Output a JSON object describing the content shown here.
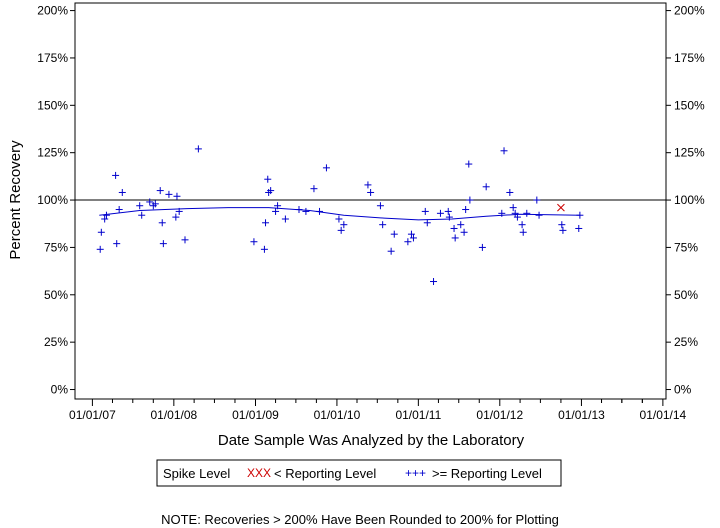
{
  "chart_data": {
    "type": "scatter",
    "xlabel": "Date Sample Was Analyzed by the Laboratory",
    "ylabel": "Percent Recovery",
    "x_tick_labels": [
      "01/01/07",
      "01/01/08",
      "01/01/09",
      "01/01/10",
      "01/01/11",
      "01/01/12",
      "01/01/13",
      "01/01/14"
    ],
    "y_tick_labels": [
      "0%",
      "25%",
      "50%",
      "75%",
      "100%",
      "125%",
      "150%",
      "175%",
      "200%"
    ],
    "y_ticks": [
      0,
      25,
      50,
      75,
      100,
      125,
      150,
      175,
      200
    ],
    "xlim": [
      "2006-10-15",
      "2014-01-15"
    ],
    "ylim": [
      -5,
      204
    ],
    "reference_line": 100,
    "legend": {
      "title": "Spike Level",
      "below_symbol": "XXX",
      "below_label": "< Reporting Level",
      "above_symbol": "+++",
      "above_label": ">= Reporting Level"
    },
    "note": "NOTE: Recoveries > 200% Have Been Rounded to 200% for Plotting",
    "colors": {
      "points": "#0000cc",
      "below_marker": "#cc0000",
      "axis": "#000000"
    },
    "series": [
      {
        "name": ">= Reporting Level",
        "marker": "+",
        "points": [
          [
            "2007-02-05",
            74
          ],
          [
            "2007-02-10",
            83
          ],
          [
            "2007-02-25",
            90
          ],
          [
            "2007-03-05",
            92
          ],
          [
            "2007-04-15",
            113
          ],
          [
            "2007-04-20",
            77
          ],
          [
            "2007-05-01",
            95
          ],
          [
            "2007-05-15",
            104
          ],
          [
            "2007-08-01",
            97
          ],
          [
            "2007-08-10",
            92
          ],
          [
            "2007-09-15",
            99
          ],
          [
            "2007-10-01",
            97
          ],
          [
            "2007-10-10",
            98
          ],
          [
            "2007-11-01",
            105
          ],
          [
            "2007-11-10",
            88
          ],
          [
            "2007-11-15",
            77
          ],
          [
            "2007-12-10",
            103
          ],
          [
            "2008-01-10",
            91
          ],
          [
            "2008-01-15",
            102
          ],
          [
            "2008-01-25",
            94
          ],
          [
            "2008-02-20",
            79
          ],
          [
            "2008-04-20",
            127
          ],
          [
            "2008-12-25",
            78
          ],
          [
            "2009-02-10",
            74
          ],
          [
            "2009-02-15",
            88
          ],
          [
            "2009-02-25",
            111
          ],
          [
            "2009-03-01",
            104
          ],
          [
            "2009-03-10",
            105
          ],
          [
            "2009-04-01",
            94
          ],
          [
            "2009-04-10",
            97
          ],
          [
            "2009-05-15",
            90
          ],
          [
            "2009-07-15",
            95
          ],
          [
            "2009-08-15",
            94
          ],
          [
            "2009-09-20",
            106
          ],
          [
            "2009-10-15",
            94
          ],
          [
            "2009-11-15",
            117
          ],
          [
            "2010-01-10",
            90
          ],
          [
            "2010-01-20",
            84
          ],
          [
            "2010-02-01",
            87
          ],
          [
            "2010-05-20",
            108
          ],
          [
            "2010-06-01",
            104
          ],
          [
            "2010-07-15",
            97
          ],
          [
            "2010-07-25",
            87
          ],
          [
            "2010-09-01",
            73
          ],
          [
            "2010-09-15",
            82
          ],
          [
            "2010-11-15",
            78
          ],
          [
            "2010-12-01",
            82
          ],
          [
            "2010-12-10",
            80
          ],
          [
            "2011-02-01",
            94
          ],
          [
            "2011-02-10",
            88
          ],
          [
            "2011-03-10",
            57
          ],
          [
            "2011-04-10",
            93
          ],
          [
            "2011-05-15",
            94
          ],
          [
            "2011-05-20",
            91
          ],
          [
            "2011-06-10",
            85
          ],
          [
            "2011-06-15",
            80
          ],
          [
            "2011-07-10",
            87
          ],
          [
            "2011-07-25",
            83
          ],
          [
            "2011-08-01",
            95
          ],
          [
            "2011-08-15",
            119
          ],
          [
            "2011-08-20",
            100
          ],
          [
            "2011-10-15",
            75
          ],
          [
            "2011-11-01",
            107
          ],
          [
            "2012-01-10",
            93
          ],
          [
            "2012-01-20",
            126
          ],
          [
            "2012-02-15",
            104
          ],
          [
            "2012-03-01",
            96
          ],
          [
            "2012-03-10",
            93
          ],
          [
            "2012-03-20",
            91
          ],
          [
            "2012-04-10",
            87
          ],
          [
            "2012-04-15",
            83
          ],
          [
            "2012-05-01",
            93
          ],
          [
            "2012-06-15",
            100
          ],
          [
            "2012-06-25",
            92
          ],
          [
            "2012-10-05",
            87
          ],
          [
            "2012-10-10",
            84
          ],
          [
            "2012-12-20",
            85
          ],
          [
            "2012-12-25",
            92
          ]
        ]
      },
      {
        "name": "< Reporting Level",
        "marker": "x",
        "points": [
          [
            "2012-10-01",
            96
          ]
        ]
      }
    ],
    "trend_line": [
      [
        "2007-02-01",
        92
      ],
      [
        "2007-08-01",
        94.5
      ],
      [
        "2008-03-01",
        95.5
      ],
      [
        "2008-09-01",
        96
      ],
      [
        "2009-03-01",
        96
      ],
      [
        "2009-09-01",
        94.5
      ],
      [
        "2010-02-01",
        92
      ],
      [
        "2010-08-01",
        90.5
      ],
      [
        "2011-01-01",
        89.5
      ],
      [
        "2011-06-01",
        90
      ],
      [
        "2011-11-01",
        91.5
      ],
      [
        "2012-04-01",
        92.5
      ],
      [
        "2012-12-25",
        92
      ]
    ]
  }
}
